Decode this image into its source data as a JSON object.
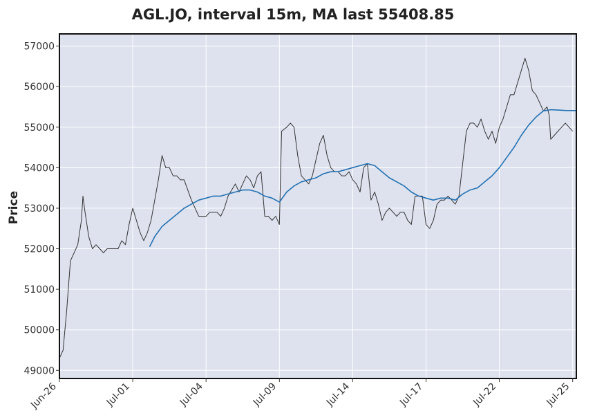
{
  "chart_data": {
    "type": "line",
    "title": "AGL.JO, interval 15m, MA last 55408.85",
    "xlabel": "",
    "ylabel": "Price",
    "ylim": [
      48800,
      57300
    ],
    "grid": true,
    "legend": "none",
    "yticks": [
      49000,
      50000,
      51000,
      52000,
      53000,
      54000,
      55000,
      56000,
      57000
    ],
    "xticks": [
      {
        "i": 0,
        "label": "Jun-26"
      },
      {
        "i": 10,
        "label": "Jul-01"
      },
      {
        "i": 20,
        "label": "Jul-04"
      },
      {
        "i": 30,
        "label": "Jul-09"
      },
      {
        "i": 40,
        "label": "Jul-14"
      },
      {
        "i": 50,
        "label": "Jul-17"
      },
      {
        "i": 60,
        "label": "Jul-22"
      },
      {
        "i": 70,
        "label": "Jul-25"
      }
    ],
    "x_range": [
      0,
      70.5
    ],
    "series": [
      {
        "kind": "price",
        "color": "#333333",
        "points": [
          [
            0,
            49300
          ],
          [
            0.5,
            49500
          ],
          [
            1,
            50500
          ],
          [
            1.5,
            51700
          ],
          [
            2,
            51900
          ],
          [
            2.5,
            52100
          ],
          [
            3,
            52700
          ],
          [
            3.2,
            53300
          ],
          [
            3.5,
            52900
          ],
          [
            4,
            52300
          ],
          [
            4.5,
            52000
          ],
          [
            5,
            52100
          ],
          [
            5.5,
            52000
          ],
          [
            6,
            51900
          ],
          [
            6.5,
            52000
          ],
          [
            7,
            52000
          ],
          [
            7.5,
            52000
          ],
          [
            8,
            52000
          ],
          [
            8.5,
            52200
          ],
          [
            9,
            52100
          ],
          [
            9.5,
            52600
          ],
          [
            10,
            53000
          ],
          [
            10.5,
            52700
          ],
          [
            11,
            52400
          ],
          [
            11.5,
            52200
          ],
          [
            12,
            52400
          ],
          [
            12.5,
            52700
          ],
          [
            13,
            53200
          ],
          [
            13.5,
            53700
          ],
          [
            14,
            54300
          ],
          [
            14.5,
            54000
          ],
          [
            15,
            54000
          ],
          [
            15.5,
            53800
          ],
          [
            16,
            53800
          ],
          [
            16.5,
            53700
          ],
          [
            17,
            53700
          ],
          [
            18,
            53200
          ],
          [
            19,
            52800
          ],
          [
            20,
            52800
          ],
          [
            20.5,
            52900
          ],
          [
            21,
            52900
          ],
          [
            21.5,
            52900
          ],
          [
            22,
            52800
          ],
          [
            22.5,
            53000
          ],
          [
            23,
            53300
          ],
          [
            24,
            53600
          ],
          [
            24.5,
            53400
          ],
          [
            25,
            53600
          ],
          [
            25.5,
            53800
          ],
          [
            26,
            53700
          ],
          [
            26.5,
            53500
          ],
          [
            27,
            53800
          ],
          [
            27.5,
            53900
          ],
          [
            28,
            52800
          ],
          [
            28.5,
            52800
          ],
          [
            29,
            52700
          ],
          [
            29.5,
            52800
          ],
          [
            30,
            52600
          ],
          [
            30.3,
            54900
          ],
          [
            31,
            55000
          ],
          [
            31.5,
            55100
          ],
          [
            32,
            55000
          ],
          [
            32.5,
            54300
          ],
          [
            33,
            53800
          ],
          [
            33.5,
            53700
          ],
          [
            34,
            53600
          ],
          [
            34.5,
            53800
          ],
          [
            35,
            54200
          ],
          [
            35.5,
            54600
          ],
          [
            36,
            54800
          ],
          [
            36.5,
            54300
          ],
          [
            37,
            54000
          ],
          [
            37.5,
            53900
          ],
          [
            38,
            53900
          ],
          [
            38.5,
            53800
          ],
          [
            39,
            53800
          ],
          [
            39.5,
            53900
          ],
          [
            40,
            53700
          ],
          [
            40.5,
            53600
          ],
          [
            41,
            53400
          ],
          [
            41.5,
            54000
          ],
          [
            42,
            54100
          ],
          [
            42.5,
            53200
          ],
          [
            43,
            53400
          ],
          [
            43.5,
            53100
          ],
          [
            44,
            52700
          ],
          [
            44.5,
            52900
          ],
          [
            45,
            53000
          ],
          [
            45.5,
            52900
          ],
          [
            46,
            52800
          ],
          [
            46.5,
            52900
          ],
          [
            47,
            52900
          ],
          [
            47.5,
            52700
          ],
          [
            48,
            52600
          ],
          [
            48.5,
            53300
          ],
          [
            49,
            53300
          ],
          [
            49.5,
            53300
          ],
          [
            50,
            52600
          ],
          [
            50.5,
            52500
          ],
          [
            51,
            52700
          ],
          [
            51.5,
            53100
          ],
          [
            52,
            53200
          ],
          [
            52.5,
            53200
          ],
          [
            53,
            53300
          ],
          [
            53.5,
            53200
          ],
          [
            54,
            53100
          ],
          [
            54.5,
            53300
          ],
          [
            55,
            54100
          ],
          [
            55.5,
            54900
          ],
          [
            56,
            55100
          ],
          [
            56.5,
            55100
          ],
          [
            57,
            55000
          ],
          [
            57.5,
            55200
          ],
          [
            58,
            54900
          ],
          [
            58.5,
            54700
          ],
          [
            59,
            54900
          ],
          [
            59.5,
            54600
          ],
          [
            60,
            55000
          ],
          [
            60.5,
            55200
          ],
          [
            61,
            55500
          ],
          [
            61.5,
            55800
          ],
          [
            62,
            55800
          ],
          [
            62.5,
            56100
          ],
          [
            63,
            56400
          ],
          [
            63.5,
            56700
          ],
          [
            64,
            56400
          ],
          [
            64.5,
            55900
          ],
          [
            65,
            55800
          ],
          [
            65.5,
            55600
          ],
          [
            66,
            55400
          ],
          [
            66.5,
            55500
          ],
          [
            66.8,
            55300
          ],
          [
            67,
            54700
          ],
          [
            67.5,
            54800
          ],
          [
            68,
            54900
          ],
          [
            68.5,
            55000
          ],
          [
            69,
            55100
          ],
          [
            69.5,
            55000
          ],
          [
            70,
            54900
          ]
        ]
      },
      {
        "kind": "moving-average",
        "color": "#2271b3",
        "points": [
          [
            12.3,
            52050
          ],
          [
            13,
            52300
          ],
          [
            14,
            52550
          ],
          [
            15,
            52700
          ],
          [
            16,
            52850
          ],
          [
            17,
            53000
          ],
          [
            18,
            53100
          ],
          [
            19,
            53200
          ],
          [
            20,
            53250
          ],
          [
            21,
            53300
          ],
          [
            22,
            53300
          ],
          [
            23,
            53350
          ],
          [
            24,
            53400
          ],
          [
            25,
            53450
          ],
          [
            26,
            53450
          ],
          [
            27,
            53400
          ],
          [
            28,
            53300
          ],
          [
            29,
            53250
          ],
          [
            30,
            53150
          ],
          [
            31,
            53400
          ],
          [
            32,
            53550
          ],
          [
            33,
            53650
          ],
          [
            34,
            53700
          ],
          [
            35,
            53750
          ],
          [
            36,
            53850
          ],
          [
            37,
            53900
          ],
          [
            38,
            53900
          ],
          [
            39,
            53950
          ],
          [
            40,
            54000
          ],
          [
            41,
            54050
          ],
          [
            42,
            54100
          ],
          [
            43,
            54050
          ],
          [
            44,
            53900
          ],
          [
            45,
            53750
          ],
          [
            46,
            53650
          ],
          [
            47,
            53550
          ],
          [
            48,
            53400
          ],
          [
            49,
            53300
          ],
          [
            50,
            53250
          ],
          [
            51,
            53200
          ],
          [
            52,
            53250
          ],
          [
            53,
            53250
          ],
          [
            54,
            53200
          ],
          [
            55,
            53350
          ],
          [
            56,
            53450
          ],
          [
            57,
            53500
          ],
          [
            58,
            53650
          ],
          [
            59,
            53800
          ],
          [
            60,
            54000
          ],
          [
            61,
            54250
          ],
          [
            62,
            54500
          ],
          [
            63,
            54800
          ],
          [
            64,
            55050
          ],
          [
            65,
            55250
          ],
          [
            66,
            55400
          ],
          [
            67,
            55430
          ],
          [
            68,
            55420
          ],
          [
            69,
            55410
          ],
          [
            70,
            55409
          ],
          [
            70.5,
            55409
          ]
        ]
      }
    ]
  }
}
